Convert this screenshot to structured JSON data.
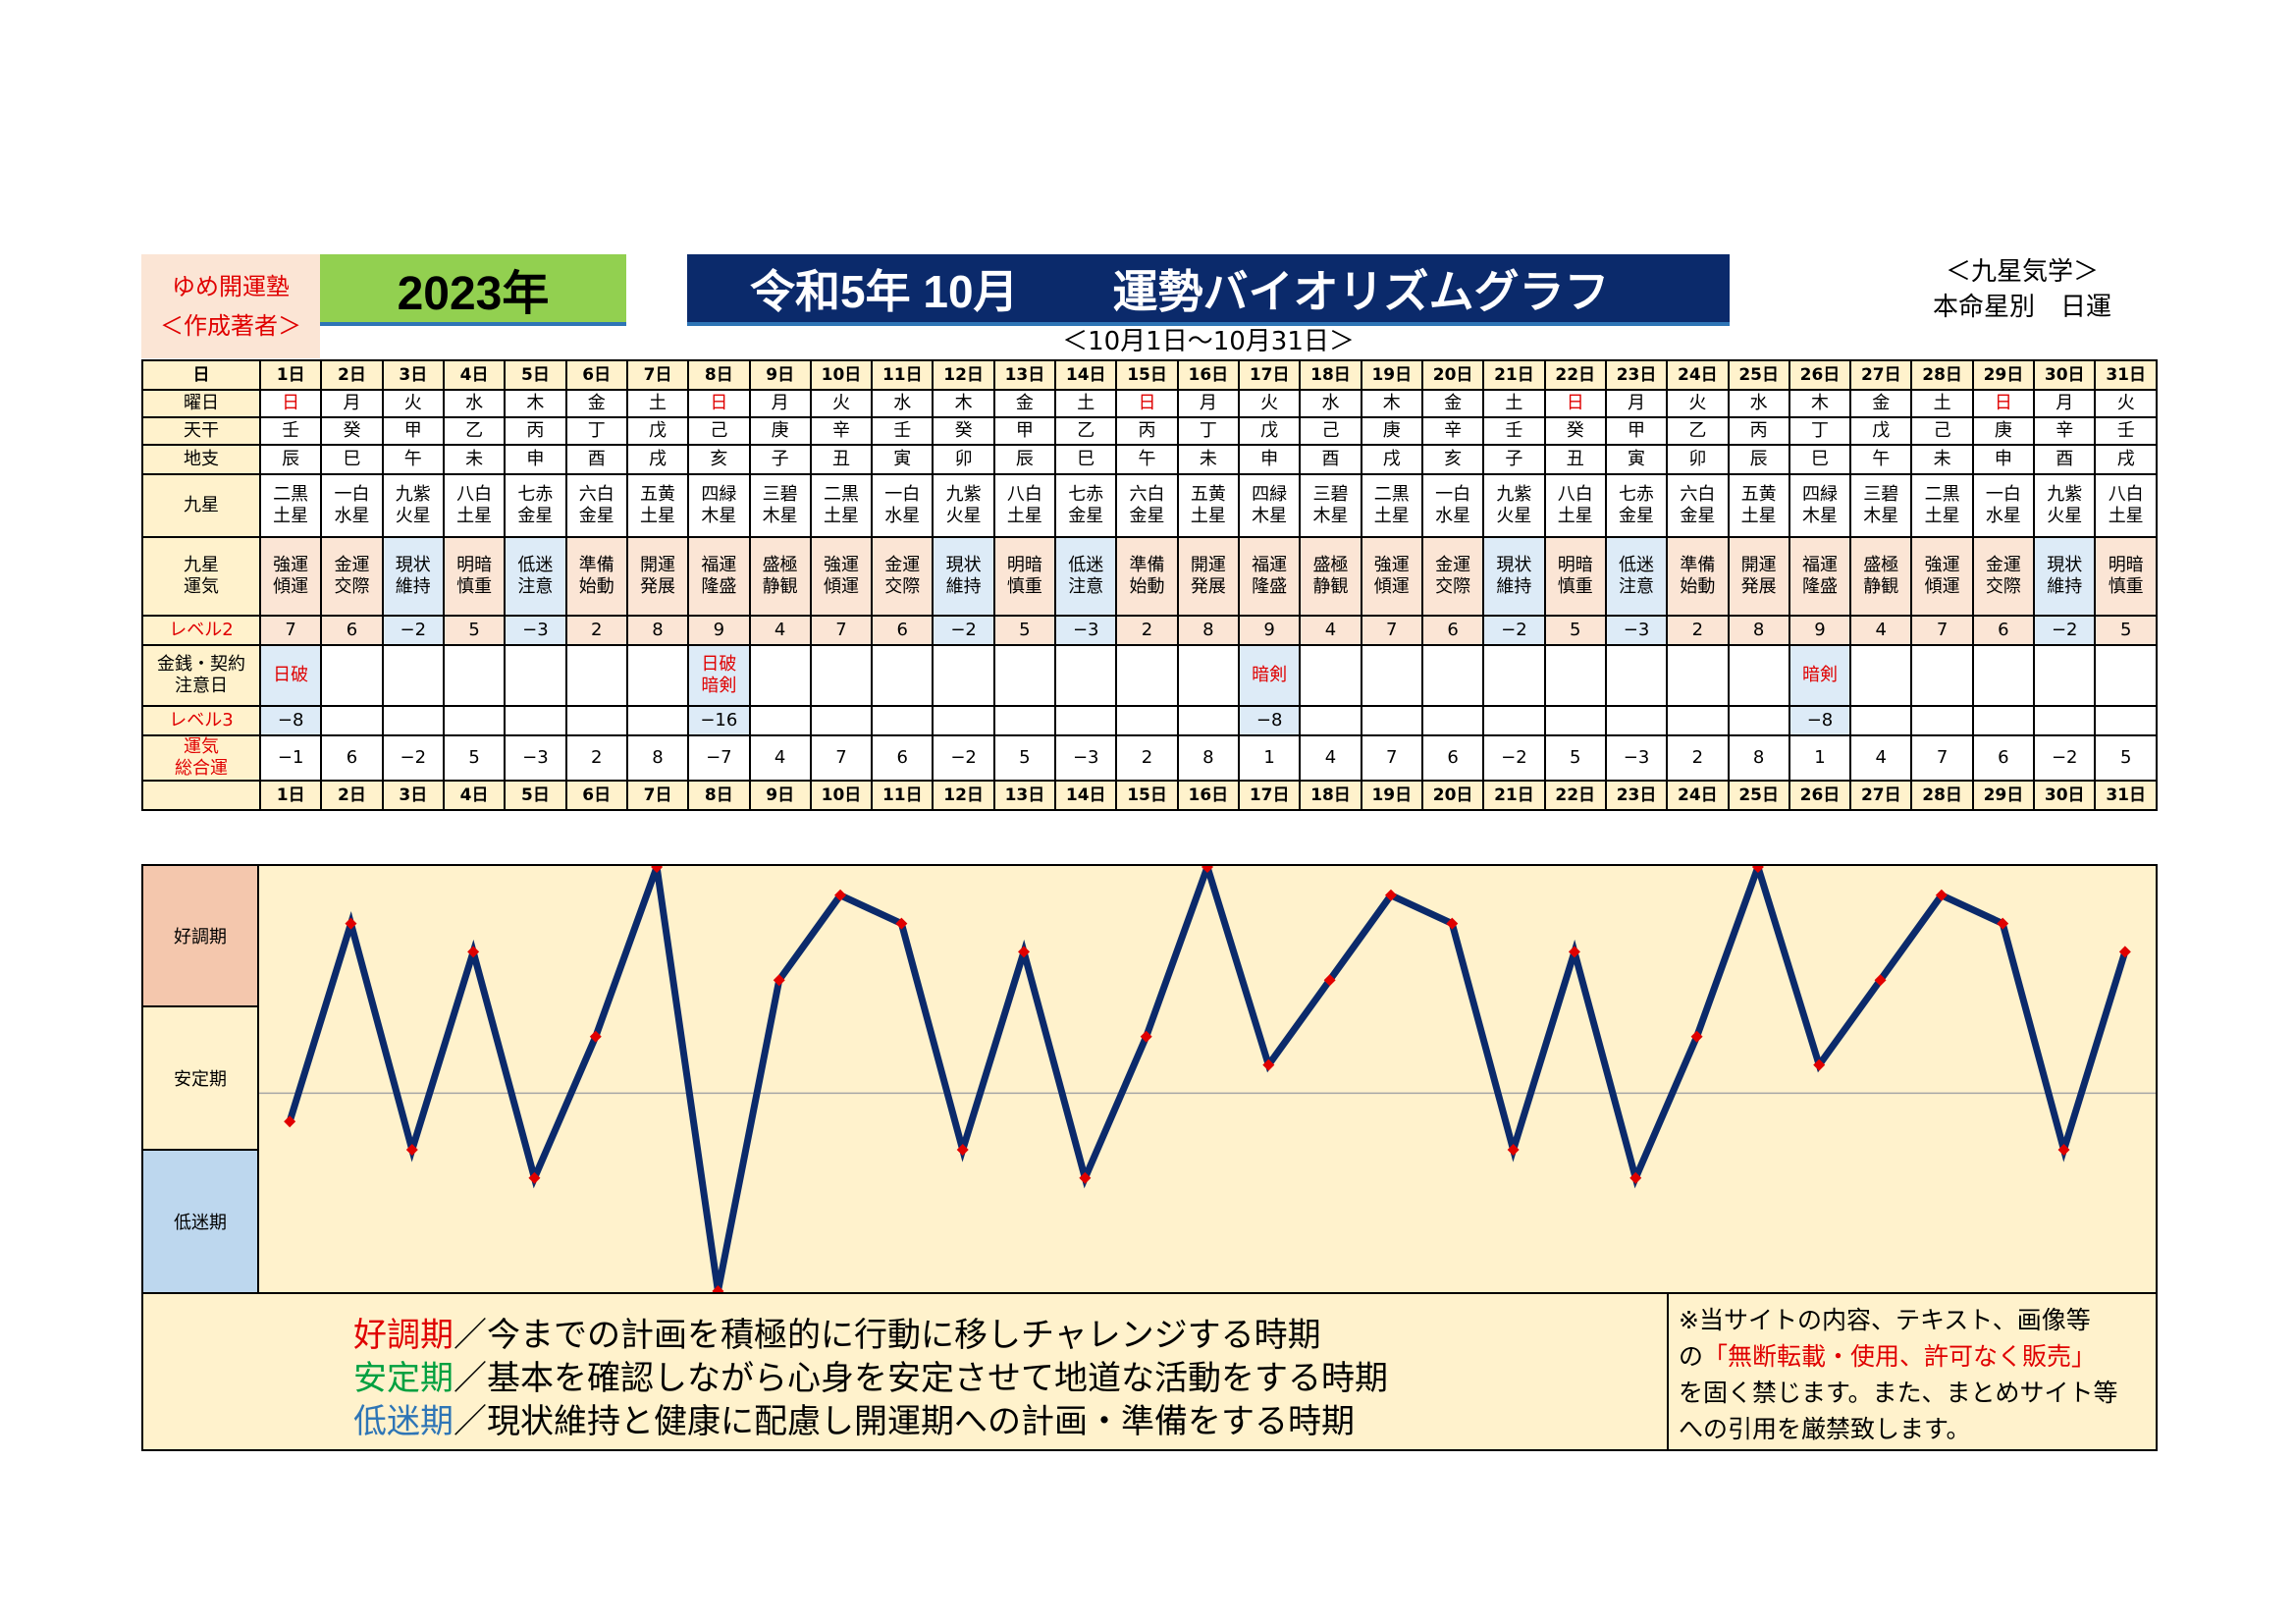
{
  "header": {
    "brand_line1": "ゆめ開運塾",
    "brand_line2": "＜作成著者＞",
    "year": "2023年",
    "title_left": "令和5年 10月",
    "title_right": "運勢バイオリズムグラフ",
    "top_right_line1": "＜九星気学＞",
    "top_right_line2": "本命星別　日運",
    "range": "＜10月1日～10月31日＞"
  },
  "labels": {
    "day": "日",
    "weekday": "曜日",
    "tenkan": "天干",
    "chishi": "地支",
    "kyusei": "九星",
    "kyusei_unki_1": "九星",
    "kyusei_unki_2": "運気",
    "level2": "レベル2",
    "caution_1": "金銭・契約",
    "caution_2": "注意日",
    "level3": "レベル3",
    "total_1": "運気",
    "total_2": "総合運"
  },
  "zones": {
    "high": "好調期",
    "stable": "安定期",
    "low": "低迷期"
  },
  "days": [
    "1日",
    "2日",
    "3日",
    "4日",
    "5日",
    "6日",
    "7日",
    "8日",
    "9日",
    "10日",
    "11日",
    "12日",
    "13日",
    "14日",
    "15日",
    "16日",
    "17日",
    "18日",
    "19日",
    "20日",
    "21日",
    "22日",
    "23日",
    "24日",
    "25日",
    "26日",
    "27日",
    "28日",
    "29日",
    "30日",
    "31日"
  ],
  "weekday": [
    "日",
    "月",
    "火",
    "水",
    "木",
    "金",
    "土",
    "日",
    "月",
    "火",
    "水",
    "木",
    "金",
    "土",
    "日",
    "月",
    "火",
    "水",
    "木",
    "金",
    "土",
    "日",
    "月",
    "火",
    "水",
    "木",
    "金",
    "土",
    "日",
    "月",
    "火"
  ],
  "tenkan": [
    "壬",
    "癸",
    "甲",
    "乙",
    "丙",
    "丁",
    "戊",
    "己",
    "庚",
    "辛",
    "壬",
    "癸",
    "甲",
    "乙",
    "丙",
    "丁",
    "戊",
    "己",
    "庚",
    "辛",
    "壬",
    "癸",
    "甲",
    "乙",
    "丙",
    "丁",
    "戊",
    "己",
    "庚",
    "辛",
    "壬"
  ],
  "chishi": [
    "辰",
    "巳",
    "午",
    "未",
    "申",
    "酉",
    "戌",
    "亥",
    "子",
    "丑",
    "寅",
    "卯",
    "辰",
    "巳",
    "午",
    "未",
    "申",
    "酉",
    "戌",
    "亥",
    "子",
    "丑",
    "寅",
    "卯",
    "辰",
    "巳",
    "午",
    "未",
    "申",
    "酉",
    "戌"
  ],
  "kyusei_top": [
    "二黒",
    "一白",
    "九紫",
    "八白",
    "七赤",
    "六白",
    "五黄",
    "四緑",
    "三碧",
    "二黒",
    "一白",
    "九紫",
    "八白",
    "七赤",
    "六白",
    "五黄",
    "四緑",
    "三碧",
    "二黒",
    "一白",
    "九紫",
    "八白",
    "七赤",
    "六白",
    "五黄",
    "四緑",
    "三碧",
    "二黒",
    "一白",
    "九紫",
    "八白"
  ],
  "kyusei_bottom": [
    "土星",
    "水星",
    "火星",
    "土星",
    "金星",
    "金星",
    "土星",
    "木星",
    "木星",
    "土星",
    "水星",
    "火星",
    "土星",
    "金星",
    "金星",
    "土星",
    "木星",
    "木星",
    "土星",
    "水星",
    "火星",
    "土星",
    "金星",
    "金星",
    "土星",
    "木星",
    "木星",
    "土星",
    "水星",
    "火星",
    "土星"
  ],
  "unki_top": [
    "強運",
    "金運",
    "現状",
    "明暗",
    "低迷",
    "準備",
    "開運",
    "福運",
    "盛極",
    "強運",
    "金運",
    "現状",
    "明暗",
    "低迷",
    "準備",
    "開運",
    "福運",
    "盛極",
    "強運",
    "金運",
    "現状",
    "明暗",
    "低迷",
    "準備",
    "開運",
    "福運",
    "盛極",
    "強運",
    "金運",
    "現状",
    "明暗"
  ],
  "unki_bottom": [
    "傾運",
    "交際",
    "維持",
    "慎重",
    "注意",
    "始動",
    "発展",
    "隆盛",
    "静観",
    "傾運",
    "交際",
    "維持",
    "慎重",
    "注意",
    "始動",
    "発展",
    "隆盛",
    "静観",
    "傾運",
    "交際",
    "維持",
    "慎重",
    "注意",
    "始動",
    "発展",
    "隆盛",
    "静観",
    "傾運",
    "交際",
    "維持",
    "慎重"
  ],
  "level2": [
    "7",
    "6",
    "−2",
    "5",
    "−3",
    "2",
    "8",
    "9",
    "4",
    "7",
    "6",
    "−2",
    "5",
    "−3",
    "2",
    "8",
    "9",
    "4",
    "7",
    "6",
    "−2",
    "5",
    "−3",
    "2",
    "8",
    "9",
    "4",
    "7",
    "6",
    "−2",
    "5"
  ],
  "caution": [
    "日破",
    "",
    "",
    "",
    "",
    "",
    "",
    "日破\n暗剣",
    "",
    "",
    "",
    "",
    "",
    "",
    "",
    "",
    "暗剣",
    "",
    "",
    "",
    "",
    "",
    "",
    "",
    "",
    "暗剣",
    "",
    "",
    "",
    "",
    ""
  ],
  "level3": [
    "−8",
    "",
    "",
    "",
    "",
    "",
    "",
    "−16",
    "",
    "",
    "",
    "",
    "",
    "",
    "",
    "",
    "−8",
    "",
    "",
    "",
    "",
    "",
    "",
    "",
    "",
    "−8",
    "",
    "",
    "",
    "",
    ""
  ],
  "total": [
    "−1",
    "6",
    "−2",
    "5",
    "−3",
    "2",
    "8",
    "−7",
    "4",
    "7",
    "6",
    "−2",
    "5",
    "−3",
    "2",
    "8",
    "1",
    "4",
    "7",
    "6",
    "−2",
    "5",
    "−3",
    "2",
    "8",
    "1",
    "4",
    "7",
    "6",
    "−2",
    "5"
  ],
  "legend": {
    "high_term": "好調期",
    "high_text": "／今までの計画を積極的に行動に移しチャレンジする時期",
    "stable_term": "安定期",
    "stable_text": "／基本を確認しながら心身を安定させて地道な活動をする時期",
    "low_term": "低迷期",
    "low_text": "／現状維持と健康に配慮し開運期への計画・準備をする時期"
  },
  "notice": {
    "line1": "※当サイトの内容、テキスト、画像等",
    "line2_pre": "の",
    "line2_red": "「無断転載・使用、許可なく販売」",
    "line3": "を固く禁じます。また、まとめサイト等",
    "line4": "への引用を厳禁致します。"
  },
  "chart_data": {
    "type": "line",
    "x": [
      "1日",
      "2日",
      "3日",
      "4日",
      "5日",
      "6日",
      "7日",
      "8日",
      "9日",
      "10日",
      "11日",
      "12日",
      "13日",
      "14日",
      "15日",
      "16日",
      "17日",
      "18日",
      "19日",
      "20日",
      "21日",
      "22日",
      "23日",
      "24日",
      "25日",
      "26日",
      "27日",
      "28日",
      "29日",
      "30日",
      "31日"
    ],
    "series": [
      {
        "values": [
          -1,
          6,
          -2,
          5,
          -3,
          2,
          8,
          -7,
          4,
          7,
          6,
          -2,
          5,
          -3,
          2,
          8,
          1,
          4,
          7,
          6,
          -2,
          5,
          -3,
          2,
          8,
          1,
          4,
          7,
          6,
          -2,
          5
        ]
      }
    ],
    "ylim": [
      -7,
      8
    ],
    "line_color": "#0b2a6b",
    "marker_color": "#e00000"
  }
}
